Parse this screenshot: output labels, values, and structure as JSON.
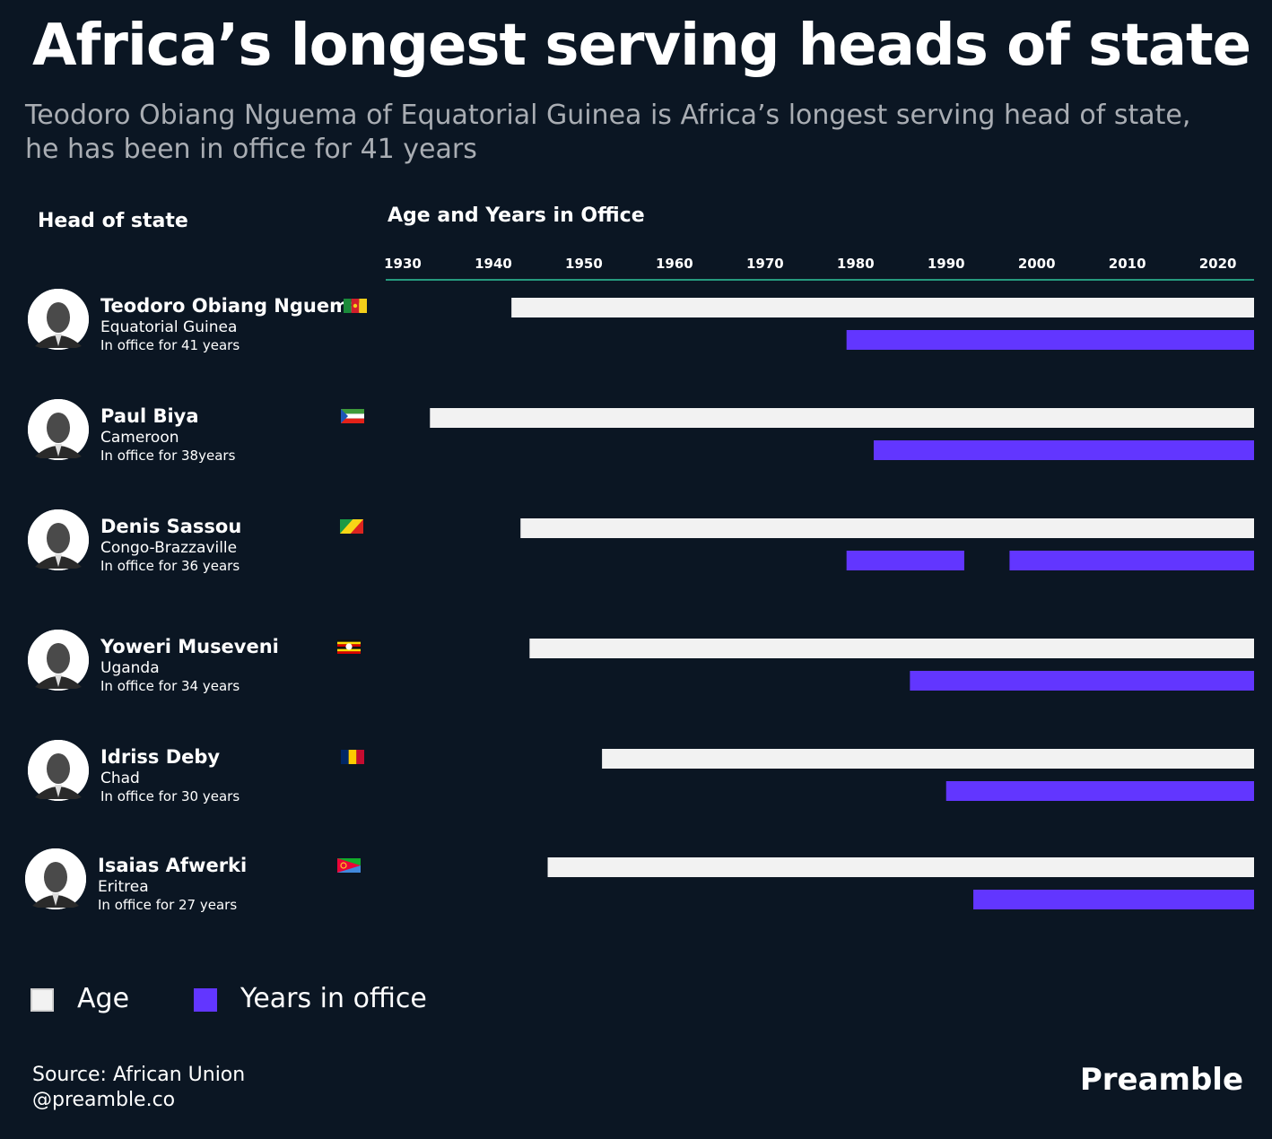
{
  "title": "Africa’s longest serving heads of state",
  "subtitle": "Teodoro Obiang Nguema of Equatorial Guinea is Africa’s longest serving head of state, he has been in office for 41 years",
  "column_headers": {
    "head_of_state": "Head of state",
    "timeline": "Age and Years in Office"
  },
  "legend": {
    "age": "Age",
    "years_in_office": "Years in office"
  },
  "colors": {
    "background": "#0b1623",
    "age": "#f2f2f2",
    "office": "#6236ff",
    "axis": "#2fc59c"
  },
  "footer": {
    "source": "Source: African Union",
    "handle": "@preamble.co",
    "brand": "Preamble"
  },
  "chart_data": {
    "type": "bar",
    "orientation": "horizontal timeline",
    "x_ticks": [
      1930,
      1940,
      1950,
      1960,
      1970,
      1980,
      1990,
      2000,
      2010,
      2020
    ],
    "xlim": [
      1930,
      2024
    ],
    "grid": false,
    "legend_position": "bottom-left",
    "series": [
      {
        "name": "Age",
        "key": "age"
      },
      {
        "name": "Years in office",
        "key": "office"
      }
    ],
    "leaders": [
      {
        "name": "Teodoro Obiang Nguema",
        "country": "Equatorial Guinea",
        "tenure_text": "In office for 41 years",
        "photo_icon": "portrait-photo",
        "flag_icon": "cameroon-flag",
        "age": [
          1942,
          2024
        ],
        "office": [
          [
            1979,
            2024
          ]
        ]
      },
      {
        "name": "Paul Biya",
        "country": "Cameroon",
        "tenure_text": "In office for 38years",
        "photo_icon": "portrait-photo",
        "flag_icon": "equatorial-guinea-flag",
        "age": [
          1933,
          2024
        ],
        "office": [
          [
            1982,
            2024
          ]
        ]
      },
      {
        "name": "Denis Sassou",
        "country": "Congo-Brazzaville",
        "tenure_text": "In office for 36 years",
        "photo_icon": "portrait-photo",
        "flag_icon": "congo-flag",
        "age": [
          1943,
          2024
        ],
        "office": [
          [
            1979,
            1992
          ],
          [
            1997,
            2024
          ]
        ]
      },
      {
        "name": "Yoweri Museveni",
        "country": "Uganda",
        "tenure_text": "In office for 34 years",
        "photo_icon": "portrait-photo",
        "flag_icon": "uganda-flag",
        "age": [
          1944,
          2024
        ],
        "office": [
          [
            1986,
            2024
          ]
        ]
      },
      {
        "name": "Idriss Deby",
        "country": "Chad",
        "tenure_text": "In office for 30 years",
        "photo_icon": "portrait-photo",
        "flag_icon": "chad-flag",
        "age": [
          1952,
          2024
        ],
        "office": [
          [
            1990,
            2024
          ]
        ]
      },
      {
        "name": "Isaias Afwerki",
        "country": "Eritrea",
        "tenure_text": "In office for 27 years",
        "photo_icon": "portrait-photo",
        "flag_icon": "eritrea-flag",
        "age": [
          1946,
          2024
        ],
        "office": [
          [
            1993,
            2024
          ]
        ]
      }
    ]
  }
}
